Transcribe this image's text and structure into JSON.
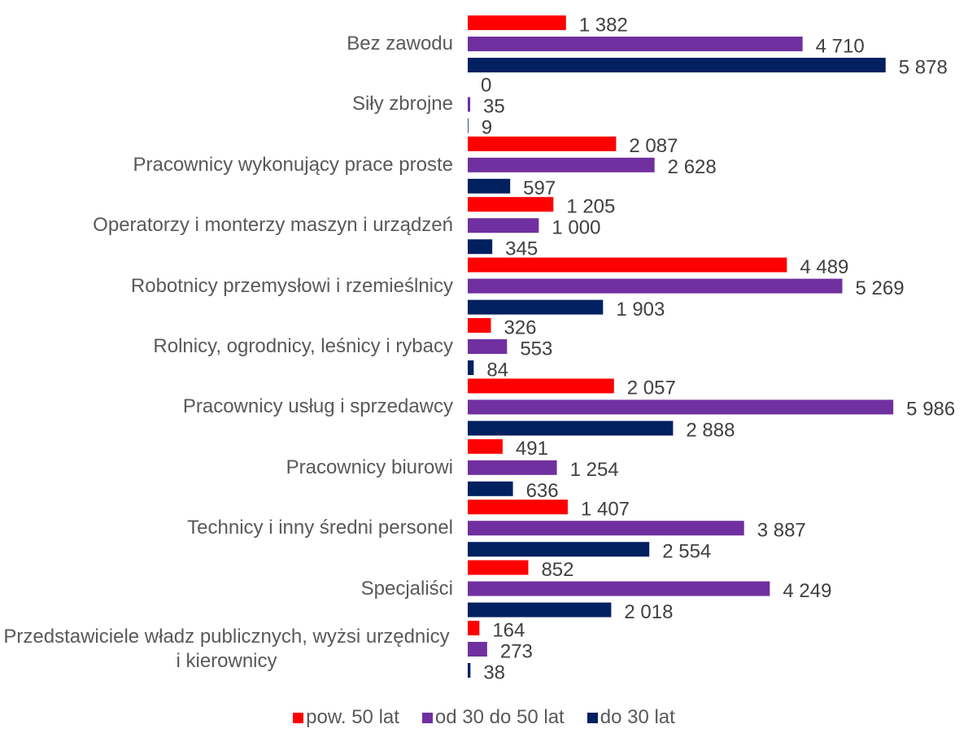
{
  "chart_data": {
    "type": "bar",
    "orientation": "horizontal",
    "categories": [
      "Bez zawodu",
      "Siły zbrojne",
      "Pracownicy wykonujący prace proste",
      "Operatorzy i monterzy maszyn i urządzeń",
      "Robotnicy przemysłowi i rzemieślnicy",
      "Rolnicy, ogrodnicy, leśnicy i rybacy",
      "Pracownicy usług i sprzedawcy",
      "Pracownicy biurowi",
      "Technicy i inny średni personel",
      "Specjaliści",
      "Przedstawiciele władz publicznych, wyżsi urzędnicy i kierownicy"
    ],
    "series": [
      {
        "name": "pow. 50 lat",
        "color": "#ff0000",
        "values": [
          1382,
          0,
          2087,
          1205,
          4489,
          326,
          2057,
          491,
          1407,
          852,
          164
        ],
        "value_labels": [
          "1 382",
          "0",
          "2 087",
          "1 205",
          "4 489",
          "326",
          "2 057",
          "491",
          "1 407",
          "852",
          "164"
        ]
      },
      {
        "name": "od 30 do 50 lat",
        "color": "#7030a0",
        "values": [
          4710,
          35,
          2628,
          1000,
          5269,
          553,
          5986,
          1254,
          3887,
          4249,
          273
        ],
        "value_labels": [
          "4 710",
          "35",
          "2 628",
          "1 000",
          "5 269",
          "553",
          "5 986",
          "1 254",
          "3 887",
          "4 249",
          "273"
        ]
      },
      {
        "name": "do 30 lat",
        "color": "#002060",
        "values": [
          5878,
          9,
          597,
          345,
          1903,
          84,
          2888,
          636,
          2554,
          2018,
          38
        ],
        "value_labels": [
          "5 878",
          "9",
          "597",
          "345",
          "1 903",
          "84",
          "2 888",
          "636",
          "2 554",
          "2 018",
          "38"
        ]
      }
    ],
    "xlim": [
      0,
      6000
    ],
    "grid": false,
    "legend": "bottom"
  }
}
